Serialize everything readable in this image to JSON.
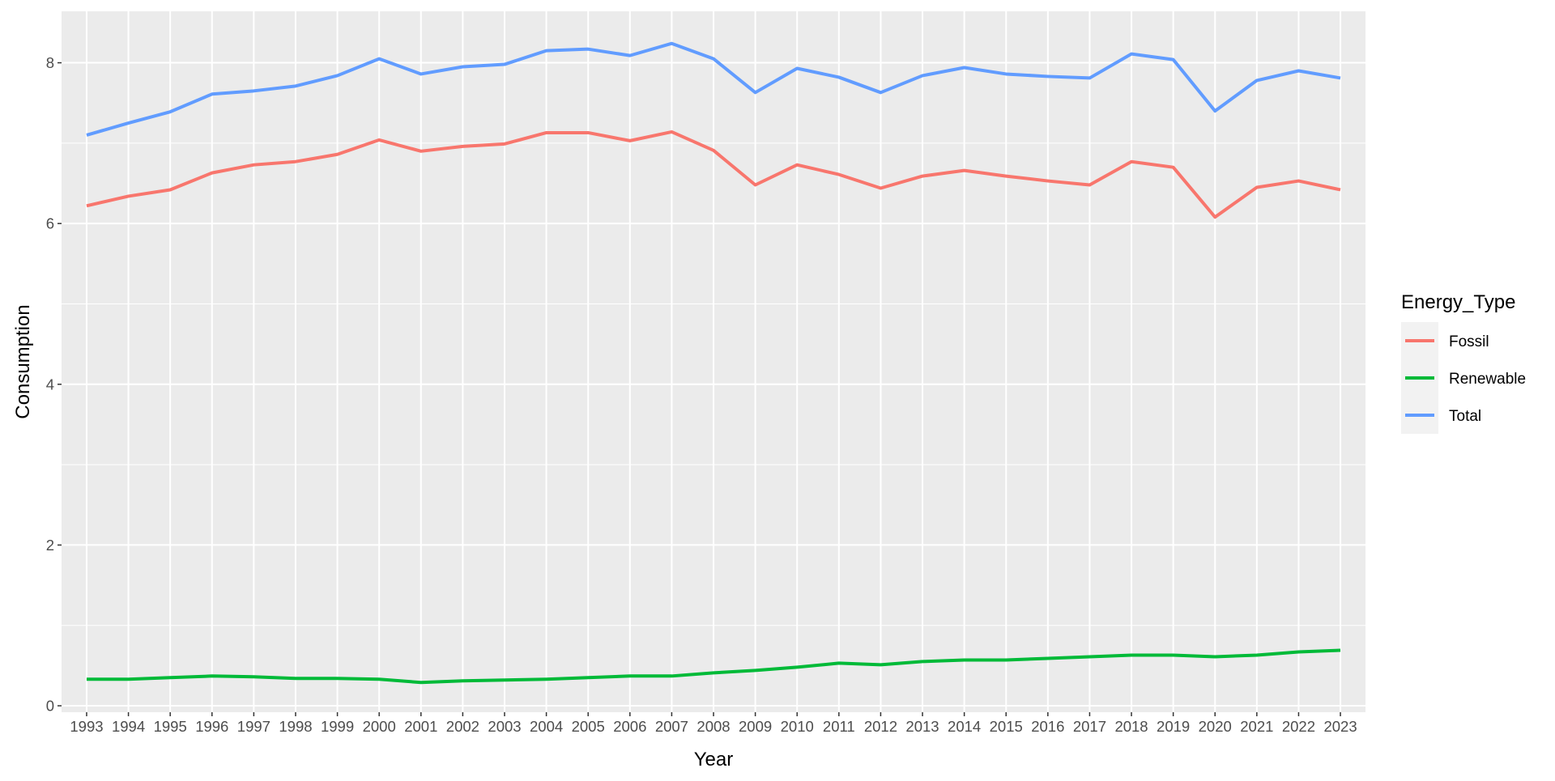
{
  "chart_data": {
    "type": "line",
    "title": "",
    "xlabel": "Year",
    "ylabel": "Consumption",
    "x": [
      "1993",
      "1994",
      "1995",
      "1996",
      "1997",
      "1998",
      "1999",
      "2000",
      "2001",
      "2002",
      "2003",
      "2004",
      "2005",
      "2006",
      "2007",
      "2008",
      "2009",
      "2010",
      "2011",
      "2012",
      "2013",
      "2014",
      "2015",
      "2016",
      "2017",
      "2018",
      "2019",
      "2020",
      "2021",
      "2022",
      "2023"
    ],
    "ylim": [
      -0.08,
      8.64
    ],
    "yticks": [
      "0",
      "2",
      "4",
      "6",
      "8"
    ],
    "grid": true,
    "legend": {
      "title": "Energy_Type",
      "position": "right"
    },
    "series": [
      {
        "name": "Fossil",
        "color": "#F8766D",
        "values": [
          6.22,
          6.34,
          6.42,
          6.63,
          6.73,
          6.77,
          6.86,
          7.04,
          6.9,
          6.96,
          6.99,
          7.13,
          7.13,
          7.03,
          7.14,
          6.91,
          6.48,
          6.73,
          6.61,
          6.44,
          6.59,
          6.66,
          6.59,
          6.53,
          6.48,
          6.77,
          6.7,
          6.08,
          6.45,
          6.53,
          6.42
        ]
      },
      {
        "name": "Renewable",
        "color": "#00BA38",
        "values": [
          0.33,
          0.33,
          0.35,
          0.37,
          0.36,
          0.34,
          0.34,
          0.33,
          0.29,
          0.31,
          0.32,
          0.33,
          0.35,
          0.37,
          0.37,
          0.41,
          0.44,
          0.48,
          0.53,
          0.51,
          0.55,
          0.57,
          0.57,
          0.59,
          0.61,
          0.63,
          0.63,
          0.61,
          0.63,
          0.67,
          0.69
        ]
      },
      {
        "name": "Total",
        "color": "#619CFF",
        "values": [
          7.1,
          7.25,
          7.39,
          7.61,
          7.65,
          7.71,
          7.84,
          8.05,
          7.86,
          7.95,
          7.98,
          8.15,
          8.17,
          8.09,
          8.24,
          8.05,
          7.63,
          7.93,
          7.82,
          7.63,
          7.84,
          7.94,
          7.86,
          7.83,
          7.81,
          8.11,
          8.04,
          7.4,
          7.78,
          7.9,
          7.81
        ]
      }
    ]
  }
}
